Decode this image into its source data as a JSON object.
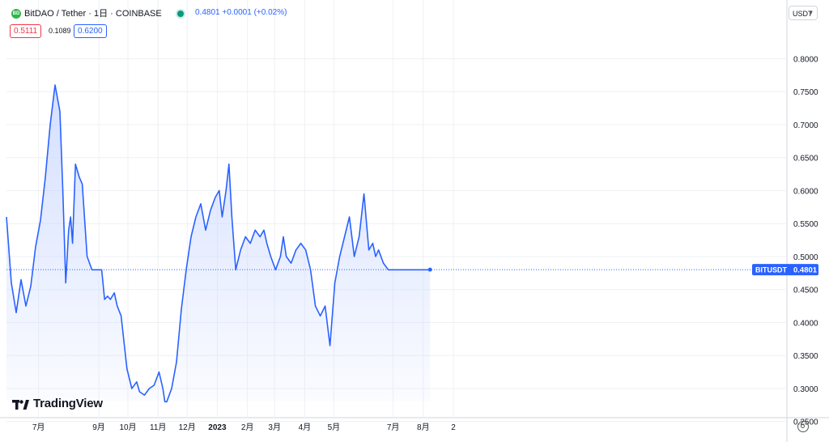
{
  "header": {
    "symbol_icon": "bitdao-logo-icon",
    "title": "BitDAO / Tether · 1日 · COINBASE",
    "status_icon": "market-open-dot-icon",
    "quote": "0.4801 +0.0001 (+0.02%)",
    "bid": "0.5111",
    "spread": "0.1089",
    "ask": "0.6200"
  },
  "currency_selector": "USDT",
  "brand": "TradingView",
  "price_tag": {
    "label": "BITUSDT",
    "value": "0.4801"
  },
  "colors": {
    "line": "#2962ff",
    "fill": "#c9d7ff",
    "bid": "#f23645",
    "ask": "#2962ff",
    "grid": "#eef0f3",
    "price_tag": "#2962ff"
  },
  "chart_data": {
    "type": "area",
    "series": [
      {
        "name": "BITUSDT",
        "x": [
          "2022-05-29",
          "2022-06-03",
          "2022-06-08",
          "2022-06-13",
          "2022-06-18",
          "2022-06-23",
          "2022-06-28",
          "2022-07-03",
          "2022-07-08",
          "2022-07-13",
          "2022-07-18",
          "2022-07-23",
          "2022-07-26",
          "2022-07-29",
          "2022-08-01",
          "2022-08-03",
          "2022-08-05",
          "2022-08-08",
          "2022-08-12",
          "2022-08-15",
          "2022-08-20",
          "2022-08-25",
          "2022-08-30",
          "2022-09-04",
          "2022-09-07",
          "2022-09-10",
          "2022-09-13",
          "2022-09-17",
          "2022-09-20",
          "2022-09-24",
          "2022-09-30",
          "2022-10-05",
          "2022-10-10",
          "2022-10-13",
          "2022-10-18",
          "2022-10-23",
          "2022-10-28",
          "2022-11-02",
          "2022-11-06",
          "2022-11-08",
          "2022-11-10",
          "2022-11-15",
          "2022-11-20",
          "2022-11-25",
          "2022-11-30",
          "2022-12-05",
          "2022-12-10",
          "2022-12-15",
          "2022-12-20",
          "2022-12-25",
          "2022-12-30",
          "2023-01-03",
          "2023-01-06",
          "2023-01-10",
          "2023-01-13",
          "2023-01-16",
          "2023-01-20",
          "2023-01-25",
          "2023-01-30",
          "2023-02-04",
          "2023-02-09",
          "2023-02-14",
          "2023-02-18",
          "2023-02-21",
          "2023-02-25",
          "2023-03-02",
          "2023-03-07",
          "2023-03-10",
          "2023-03-13",
          "2023-03-18",
          "2023-03-23",
          "2023-03-28",
          "2023-04-02",
          "2023-04-07",
          "2023-04-12",
          "2023-04-17",
          "2023-04-22",
          "2023-04-27",
          "2023-05-02",
          "2023-05-07",
          "2023-05-12",
          "2023-05-17",
          "2023-05-22",
          "2023-05-27",
          "2023-06-01",
          "2023-06-06",
          "2023-06-10",
          "2023-06-13",
          "2023-06-16",
          "2023-06-21",
          "2023-06-26",
          "2023-07-01",
          "2023-07-04",
          "2023-07-07",
          "2023-07-10",
          "2023-07-14",
          "2023-07-18",
          "2023-07-21",
          "2023-07-24",
          "2023-07-28",
          "2023-08-01",
          "2023-08-05",
          "2023-08-08"
        ],
        "values": [
          0.56,
          0.46,
          0.415,
          0.465,
          0.425,
          0.455,
          0.515,
          0.555,
          0.62,
          0.7,
          0.76,
          0.72,
          0.6,
          0.46,
          0.54,
          0.56,
          0.52,
          0.64,
          0.62,
          0.61,
          0.5,
          0.48,
          0.48,
          0.48,
          0.435,
          0.44,
          0.435,
          0.445,
          0.425,
          0.41,
          0.33,
          0.3,
          0.31,
          0.295,
          0.29,
          0.3,
          0.305,
          0.325,
          0.3,
          0.28,
          0.28,
          0.3,
          0.34,
          0.42,
          0.48,
          0.53,
          0.56,
          0.58,
          0.54,
          0.57,
          0.59,
          0.6,
          0.56,
          0.6,
          0.64,
          0.56,
          0.48,
          0.51,
          0.53,
          0.52,
          0.54,
          0.53,
          0.54,
          0.52,
          0.5,
          0.48,
          0.5,
          0.53,
          0.5,
          0.49,
          0.51,
          0.52,
          0.51,
          0.48,
          0.425,
          0.41,
          0.425,
          0.365,
          0.46,
          0.5,
          0.53,
          0.56,
          0.5,
          0.53,
          0.595,
          0.51,
          0.52,
          0.5,
          0.51,
          0.49,
          0.48,
          0.48,
          0.48,
          0.48,
          0.48,
          0.48,
          0.48,
          0.48,
          0.48,
          0.48,
          0.48,
          0.48,
          0.4801
        ]
      }
    ],
    "y_ticks": [
      "0.2500",
      "0.3000",
      "0.3500",
      "0.4000",
      "0.4500",
      "0.5000",
      "0.5500",
      "0.6000",
      "0.6500",
      "0.7000",
      "0.7500",
      "0.8000"
    ],
    "ylim": [
      0.23,
      0.83
    ],
    "x_ticks": [
      {
        "label": "7月",
        "date": "2022-07-01"
      },
      {
        "label": "9月",
        "date": "2022-09-01"
      },
      {
        "label": "10月",
        "date": "2022-10-01"
      },
      {
        "label": "11月",
        "date": "2022-11-01"
      },
      {
        "label": "12月",
        "date": "2022-12-01"
      },
      {
        "label": "2023",
        "date": "2023-01-01"
      },
      {
        "label": "2月",
        "date": "2023-02-01"
      },
      {
        "label": "3月",
        "date": "2023-03-01"
      },
      {
        "label": "4月",
        "date": "2023-04-01"
      },
      {
        "label": "5月",
        "date": "2023-05-01"
      },
      {
        "label": "7月",
        "date": "2023-07-01"
      },
      {
        "label": "8月",
        "date": "2023-08-01"
      },
      {
        "label": "2",
        "date": "2023-09-01"
      }
    ],
    "last_value": 0.4801,
    "grid": true,
    "legend": "none"
  }
}
